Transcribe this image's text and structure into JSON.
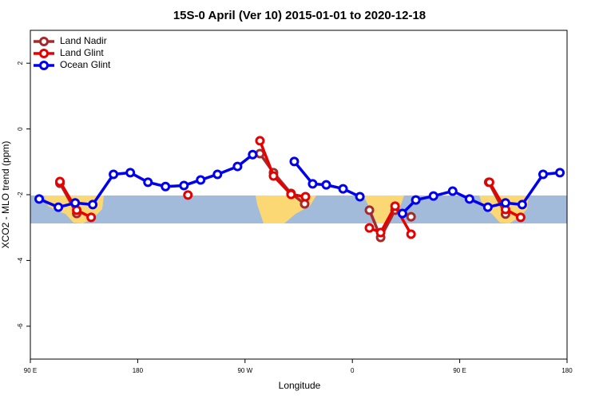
{
  "chart_data": {
    "type": "line",
    "title": "15S-0 April (Ver 10)   2015-01-01 to 2020-12-18",
    "xlabel": "Longitude",
    "ylabel": "XCO2 - MLO trend (ppm)",
    "xlim": [
      90,
      540
    ],
    "xticks": [
      {
        "value": 90,
        "label": "90 E"
      },
      180,
      {
        "value": 270,
        "label": "90 W"
      },
      {
        "value": 360,
        "label": "0"
      },
      {
        "value": 450,
        "label": "90 E"
      },
      {
        "value": 540,
        "label": "180"
      }
    ],
    "ylim": [
      -7,
      3
    ],
    "yticks": [
      2,
      0,
      -2,
      -4,
      -6
    ],
    "legend": "top-left",
    "series": [
      {
        "name": "Land Nadir",
        "color": "#a52a2a",
        "x": [
          114.8,
          128.9,
          null,
          282.5,
          293.9,
          308.6,
          320.0,
          null,
          374.3,
          383.7,
          395.8,
          409.2,
          null,
          474.3,
          488.4
        ],
        "values": [
          -1.65,
          -2.57,
          null,
          -0.75,
          -1.33,
          -1.96,
          -2.28,
          null,
          -2.47,
          -3.3,
          -2.47,
          -2.67,
          null,
          -1.62,
          -2.59
        ]
      },
      {
        "name": "Land Glint",
        "color": "#e60000",
        "x": [
          114.8,
          128.9,
          141.0,
          null,
          222.1,
          null,
          282.5,
          293.9,
          308.6,
          320.7,
          null,
          374.3,
          383.7,
          395.8,
          409.2,
          null,
          475.0,
          488.4,
          501.1
        ],
        "values": [
          -1.6,
          -2.47,
          -2.69,
          null,
          -2.01,
          null,
          -0.36,
          -1.43,
          -1.99,
          -2.06,
          null,
          -3.01,
          -3.15,
          -2.35,
          -3.2,
          null,
          -1.62,
          -2.45,
          -2.69
        ]
      },
      {
        "name": "Ocean Glint",
        "color": "#0000ee",
        "x": [
          97.4,
          113.5,
          127.6,
          142.3,
          159.7,
          173.8,
          188.6,
          203.3,
          218.8,
          232.8,
          246.9,
          263.7,
          276.4,
          null,
          311.3,
          326.7,
          338.1,
          352.2,
          366.3,
          null,
          402.0,
          413.2,
          428.0,
          444.1,
          458.2,
          473.6,
          488.4,
          502.4,
          519.9,
          534.0
        ],
        "values": [
          -2.13,
          -2.38,
          -2.25,
          -2.3,
          -1.38,
          -1.33,
          -1.62,
          -1.75,
          -1.72,
          -1.55,
          -1.38,
          -1.14,
          -0.78,
          null,
          -0.99,
          -1.67,
          -1.7,
          -1.82,
          -2.06,
          null,
          -2.57,
          -2.16,
          -2.04,
          -1.89,
          -2.13,
          -2.38,
          -2.25,
          -2.3,
          -1.38,
          -1.33
        ]
      }
    ]
  }
}
